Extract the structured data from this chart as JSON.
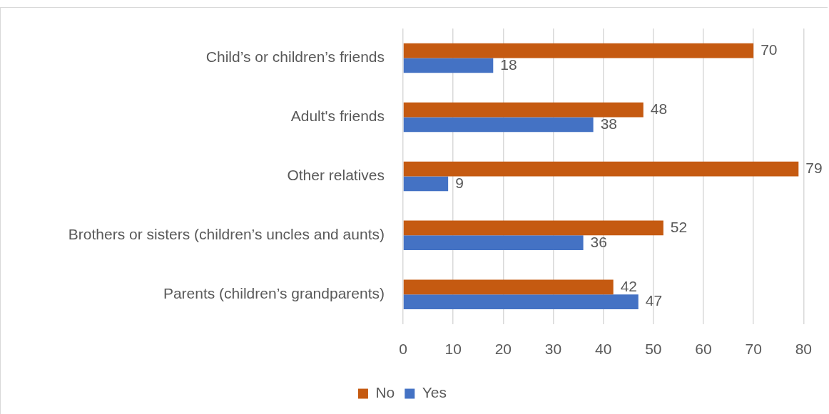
{
  "chart_data": {
    "type": "bar",
    "orientation": "horizontal",
    "categories": [
      "Child’s or children’s friends",
      "Adult's friends",
      "Other relatives",
      "Brothers or sisters (children’s uncles and aunts)",
      "Parents (children’s grandparents)"
    ],
    "series": [
      {
        "name": "No",
        "color": "#c55a11",
        "values": [
          70,
          48,
          79,
          52,
          42
        ]
      },
      {
        "name": "Yes",
        "color": "#4472c4",
        "values": [
          18,
          38,
          9,
          36,
          47
        ]
      }
    ],
    "xlim": [
      0,
      80
    ],
    "xticks": [
      0,
      10,
      20,
      30,
      40,
      50,
      60,
      70,
      80
    ],
    "grid": "x",
    "legend": "bottom",
    "data_labels": true
  }
}
